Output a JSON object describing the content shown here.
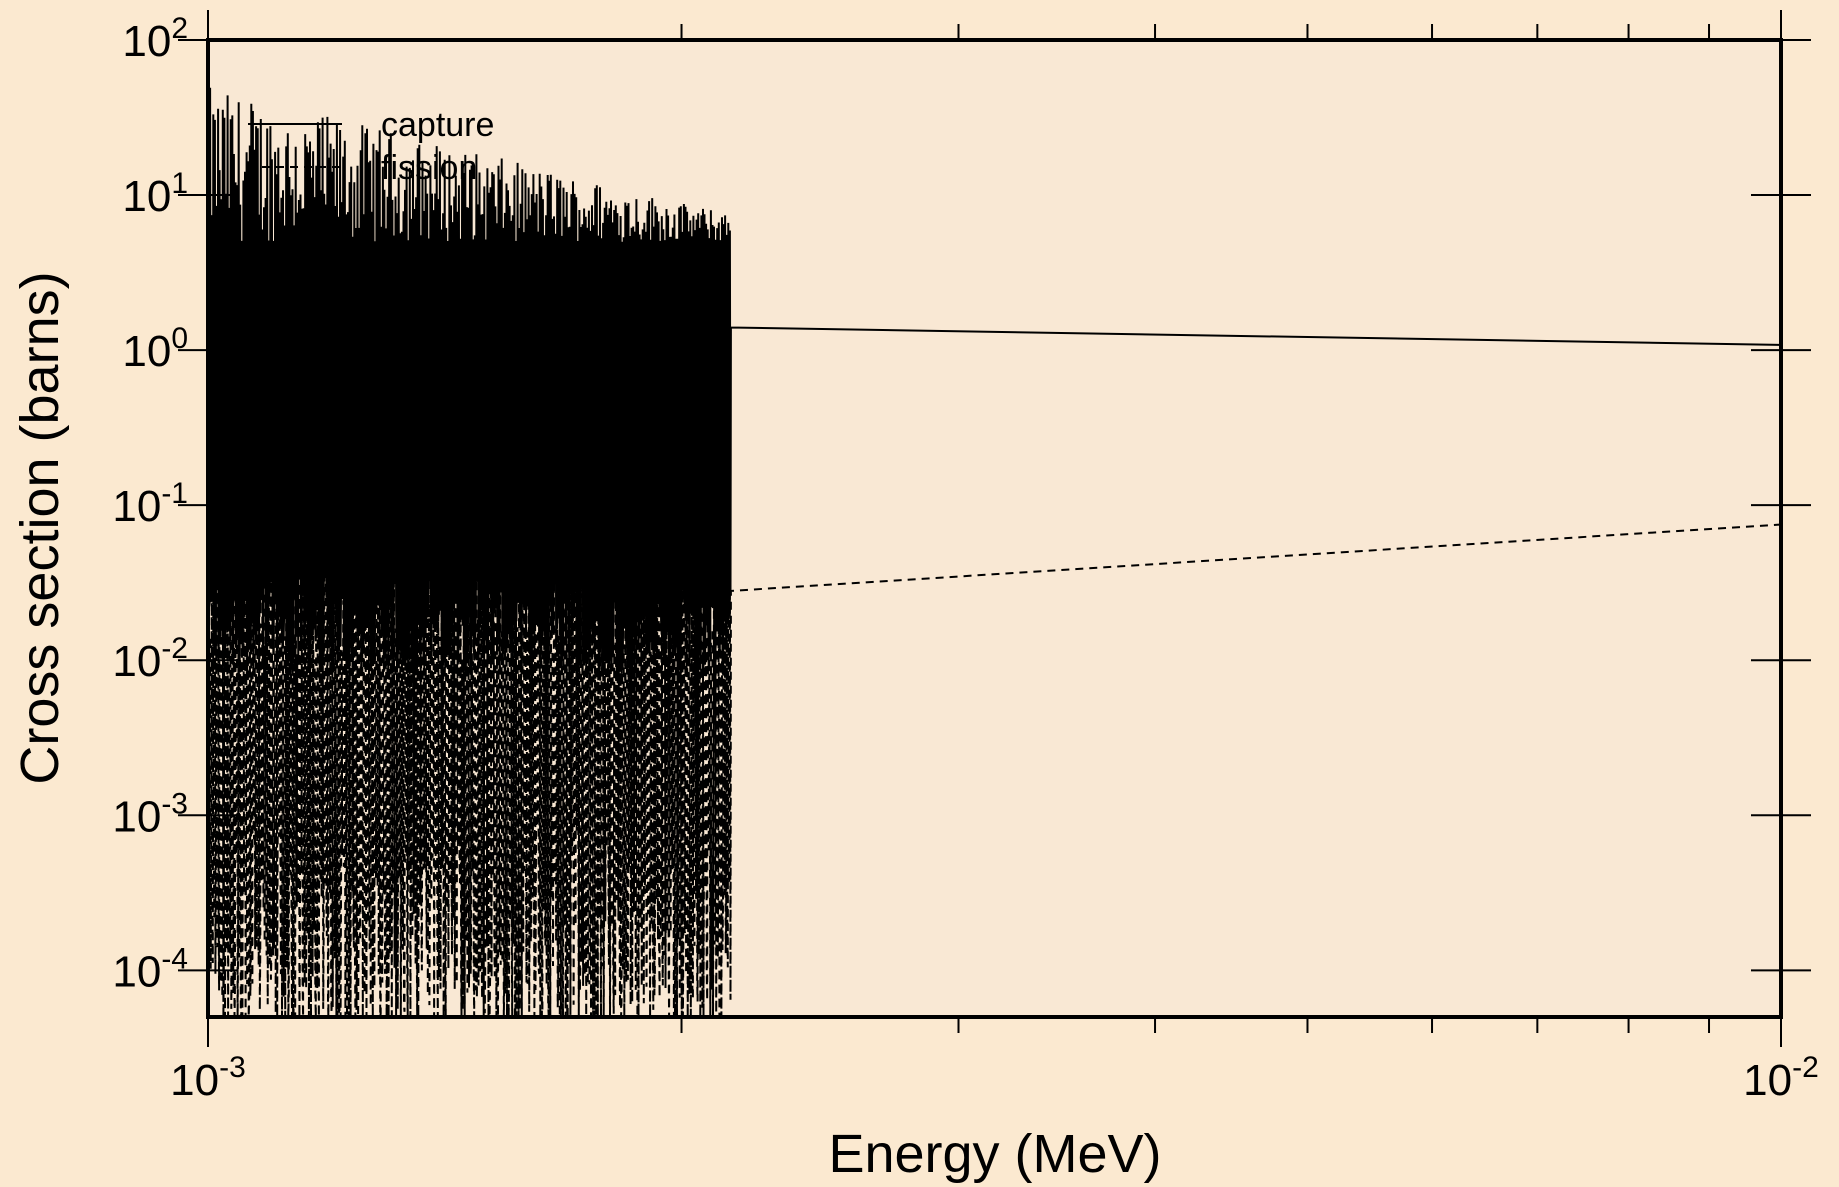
{
  "chart_data": {
    "type": "line",
    "xlabel": "Energy (MeV)",
    "ylabel": "Cross section (barns)",
    "xscale": "log",
    "yscale": "log",
    "xlim": [
      0.001,
      0.01
    ],
    "ylim": [
      5e-05,
      100
    ],
    "grid": false,
    "legend_position": "top-left",
    "x_tick_labels": [
      {
        "value": 0.001,
        "base": "10",
        "exp": "-3"
      },
      {
        "value": 0.01,
        "base": "10",
        "exp": "-2"
      }
    ],
    "y_tick_labels": [
      {
        "value": 100,
        "base": "10",
        "exp": "2"
      },
      {
        "value": 10,
        "base": "10",
        "exp": "1"
      },
      {
        "value": 1,
        "base": "10",
        "exp": "0"
      },
      {
        "value": 0.1,
        "base": "10",
        "exp": "-1"
      },
      {
        "value": 0.01,
        "base": "10",
        "exp": "-2"
      },
      {
        "value": 0.001,
        "base": "10",
        "exp": "-3"
      },
      {
        "value": 0.0001,
        "base": "10",
        "exp": "-4"
      }
    ],
    "resolved_region_end": 0.00215,
    "series": [
      {
        "name": "capture",
        "style": "solid",
        "resonance_peak_range": [
          5,
          50
        ],
        "resonance_valley_range": [
          0.008,
          0.04
        ],
        "smooth_points": [
          [
            0.00215,
            1.4
          ],
          [
            0.01,
            1.08
          ]
        ]
      },
      {
        "name": "fission",
        "style": "dashed",
        "resonance_peak_range": [
          0.01,
          1.0
        ],
        "resonance_valley_range": [
          3e-05,
          0.001
        ],
        "smooth_points": [
          [
            0.00215,
            0.028
          ],
          [
            0.01,
            0.075
          ]
        ]
      }
    ]
  },
  "colors": {
    "background": "#fbe9d0",
    "plot_area": "#f9e8d4",
    "ink": "#000000"
  }
}
